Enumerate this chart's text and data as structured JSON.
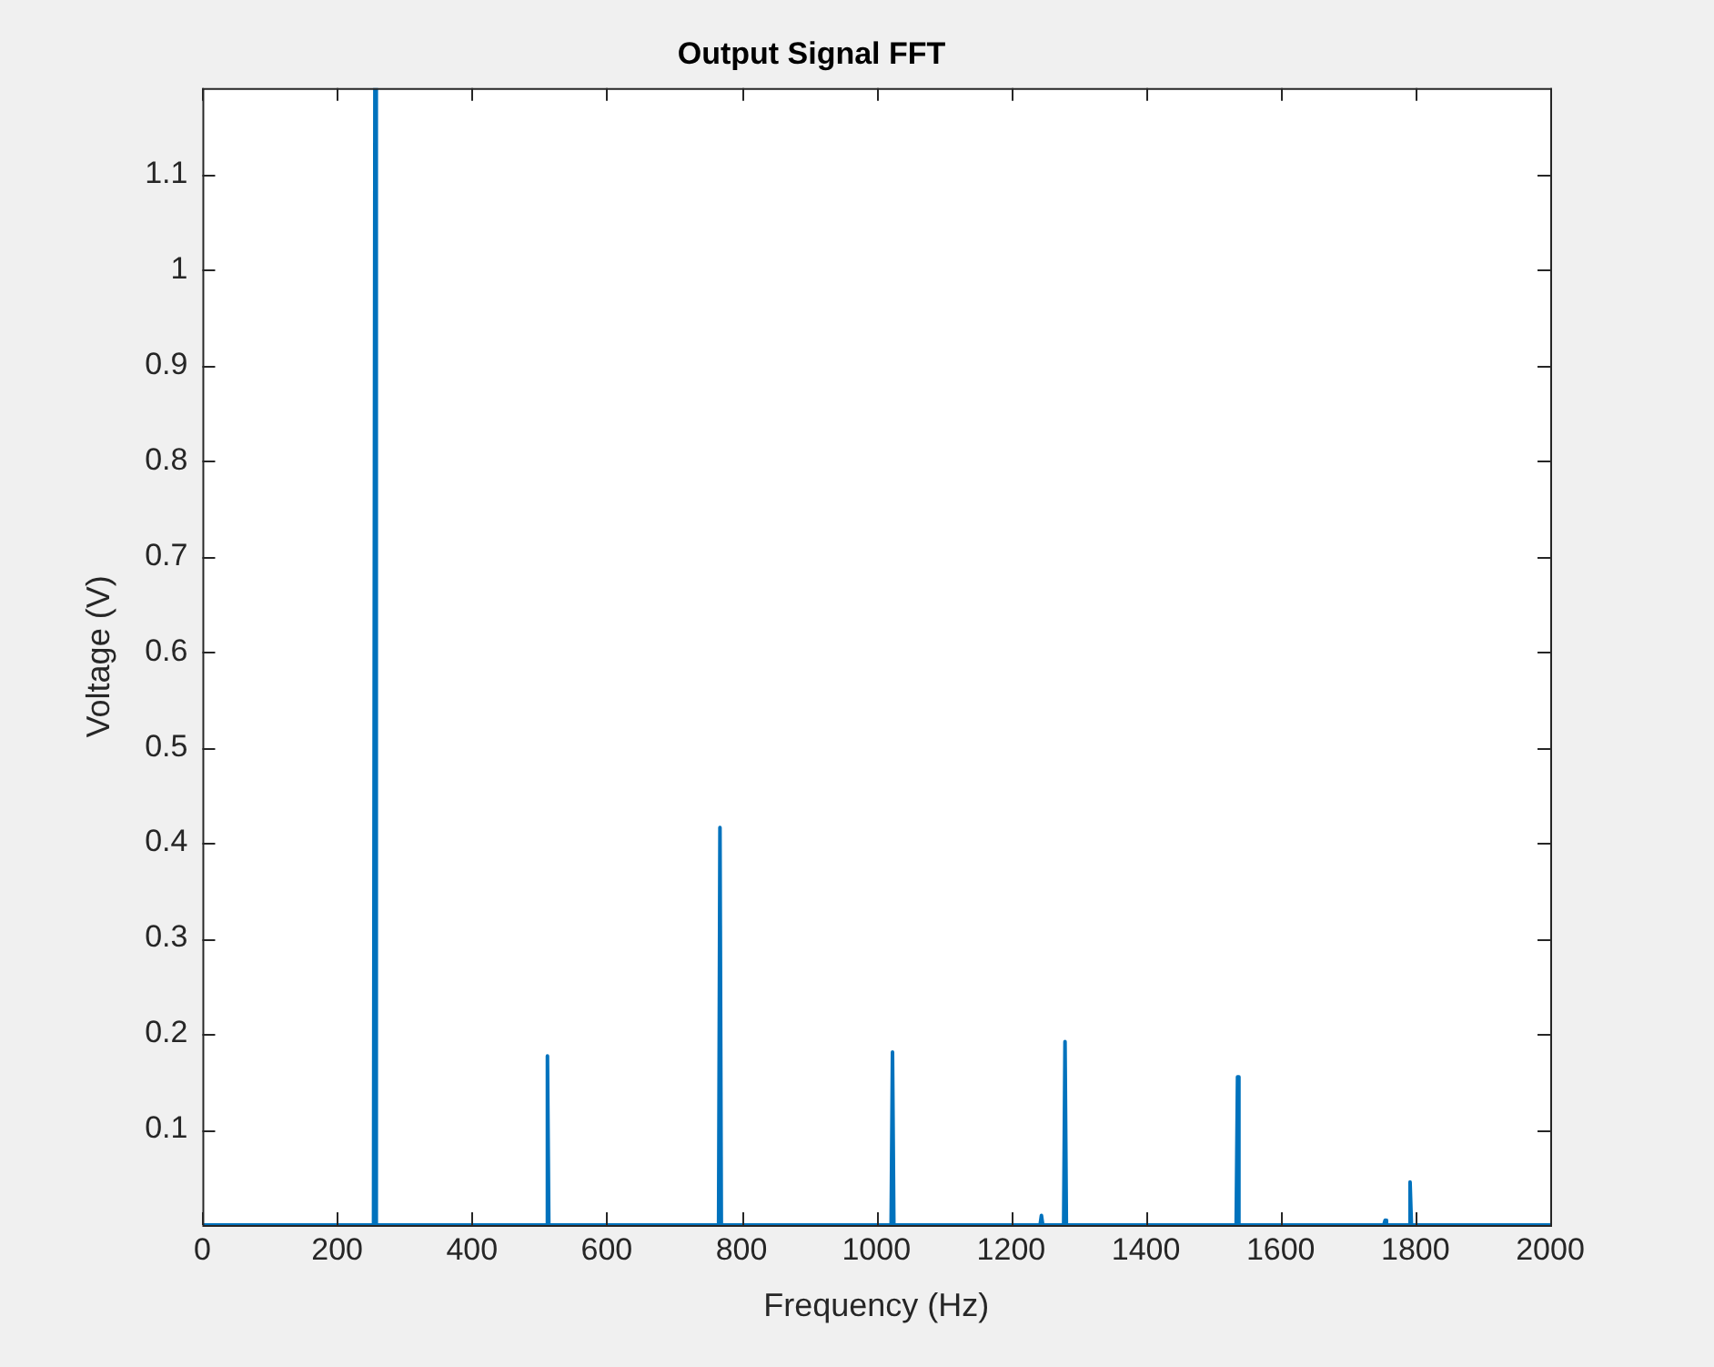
{
  "chart_data": {
    "type": "line",
    "title": "Output Signal FFT",
    "xlabel": "Frequency (Hz)",
    "ylabel": "Voltage (V)",
    "x": [
      0,
      254,
      256,
      258,
      510,
      512,
      514,
      766,
      768,
      770,
      1022,
      1024,
      1026,
      1243,
      1245,
      1247,
      1278,
      1280,
      1282,
      1534,
      1536,
      1538,
      1753,
      1755,
      1757,
      1790,
      1792,
      1794,
      2000
    ],
    "series": [
      {
        "color": "#0072bd",
        "values": [
          0,
          0,
          1.19,
          0,
          0,
          0.177,
          0,
          0,
          0.416,
          0,
          0,
          0.181,
          0,
          0,
          0.01,
          0,
          0,
          0.192,
          0,
          0,
          0.155,
          0,
          0,
          0.005,
          0,
          0,
          0.045,
          0,
          0
        ]
      }
    ],
    "xlim": [
      0,
      2000
    ],
    "xticks": [
      0,
      200,
      400,
      600,
      800,
      1000,
      1200,
      1400,
      1600,
      1800,
      2000
    ],
    "ylim": [
      0,
      1.19
    ],
    "yticks": [
      0.1,
      0.2,
      0.3,
      0.4,
      0.5,
      0.6,
      0.7,
      0.8,
      0.9,
      1,
      1.1
    ],
    "grid": false,
    "legend": false,
    "marker": "none",
    "line_style": "solid"
  }
}
